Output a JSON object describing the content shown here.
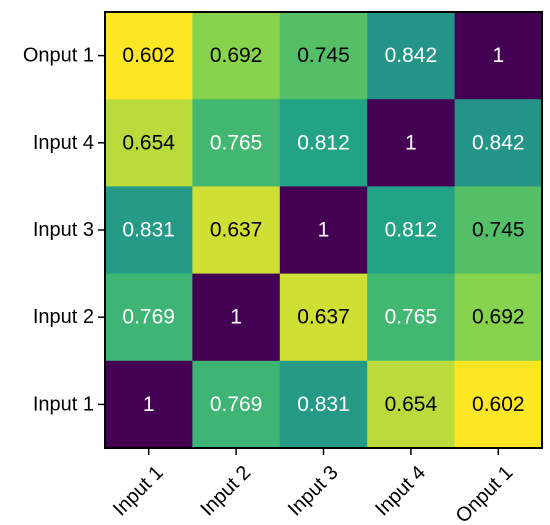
{
  "chart_data": {
    "type": "heatmap",
    "title": "",
    "xlabel": "",
    "ylabel": "",
    "x_categories": [
      "Input 1",
      "Input 2",
      "Input 3",
      "Input 4",
      "Onput 1"
    ],
    "y_categories_top_to_bottom": [
      "Onput 1",
      "Input 4",
      "Input 3",
      "Input 2",
      "Input 1"
    ],
    "values": [
      [
        0.602,
        0.692,
        0.745,
        0.842,
        1
      ],
      [
        0.654,
        0.765,
        0.812,
        1,
        0.842
      ],
      [
        0.831,
        0.637,
        1,
        0.812,
        0.745
      ],
      [
        0.769,
        1,
        0.637,
        0.765,
        0.692
      ],
      [
        1,
        0.769,
        0.831,
        0.654,
        0.602
      ]
    ],
    "value_labels": [
      [
        "0.602",
        "0.692",
        "0.745",
        "0.842",
        "1"
      ],
      [
        "0.654",
        "0.765",
        "0.812",
        "1",
        "0.842"
      ],
      [
        "0.831",
        "0.637",
        "1",
        "0.812",
        "0.745"
      ],
      [
        "0.769",
        "1",
        "0.637",
        "0.765",
        "0.692"
      ],
      [
        "1",
        "0.769",
        "0.831",
        "0.654",
        "0.602"
      ]
    ],
    "colormap": "viridis_reversed",
    "color_range": [
      0.602,
      1
    ],
    "colorbar": false,
    "grid": false,
    "legend": "none",
    "colors": {
      "low": "#fde725",
      "high": "#440154",
      "light_text": "#ffffff",
      "dark_text": "#000000",
      "axis": "#000000"
    }
  }
}
